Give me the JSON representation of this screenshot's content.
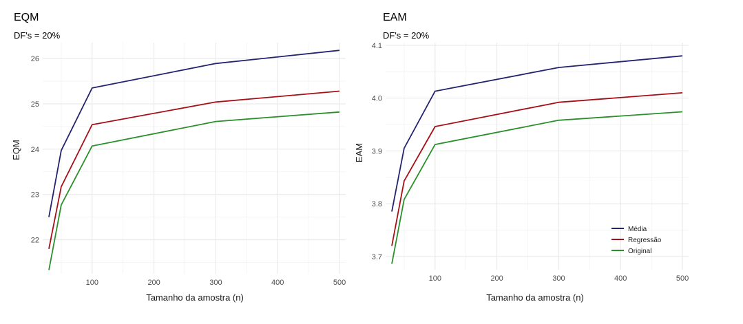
{
  "chart_data": [
    {
      "type": "line",
      "title": "EQM",
      "subtitle": "DF's = 20%",
      "xlabel": "Tamanho da amostra (n)",
      "ylabel": "EQM",
      "xlim": [
        20,
        510
      ],
      "ylim": [
        21.25,
        26.35
      ],
      "xticks": [
        100,
        200,
        300,
        400,
        500
      ],
      "xtick_labels": [
        "100",
        "200",
        "300",
        "400",
        "500"
      ],
      "yticks": [
        22,
        23,
        24,
        25,
        26
      ],
      "ytick_labels": [
        "22",
        "23",
        "24",
        "25",
        "26"
      ],
      "grid": true,
      "x": [
        30,
        50,
        100,
        300,
        500
      ],
      "series": [
        {
          "name": "Média",
          "color": "#23236e",
          "values": [
            22.5,
            23.97,
            25.35,
            25.89,
            26.18
          ]
        },
        {
          "name": "Regressão",
          "color": "#a50f15",
          "values": [
            21.8,
            23.17,
            24.54,
            25.04,
            25.28
          ]
        },
        {
          "name": "Original",
          "color": "#2b8f2b",
          "values": [
            21.33,
            22.77,
            24.07,
            24.61,
            24.82
          ]
        }
      ]
    },
    {
      "type": "line",
      "title": "EAM",
      "subtitle": "DF's = 20%",
      "xlabel": "Tamanho da amostra (n)",
      "ylabel": "EAM",
      "xlim": [
        20,
        510
      ],
      "ylim": [
        3.675,
        4.105
      ],
      "xticks": [
        100,
        200,
        300,
        400,
        500
      ],
      "xtick_labels": [
        "100",
        "200",
        "300",
        "400",
        "500"
      ],
      "yticks": [
        3.7,
        3.8,
        3.9,
        4.0,
        4.1
      ],
      "ytick_labels": [
        "3.7",
        "3.8",
        "3.9",
        "4.0",
        "4.1"
      ],
      "grid": true,
      "legend": "bottom-right",
      "x": [
        30,
        50,
        100,
        300,
        500
      ],
      "series": [
        {
          "name": "Média",
          "color": "#23236e",
          "values": [
            3.785,
            3.905,
            4.013,
            4.058,
            4.08
          ]
        },
        {
          "name": "Regressão",
          "color": "#a50f15",
          "values": [
            3.72,
            3.843,
            3.946,
            3.992,
            4.01
          ]
        },
        {
          "name": "Original",
          "color": "#2b8f2b",
          "values": [
            3.686,
            3.808,
            3.912,
            3.958,
            3.974
          ]
        }
      ]
    }
  ]
}
